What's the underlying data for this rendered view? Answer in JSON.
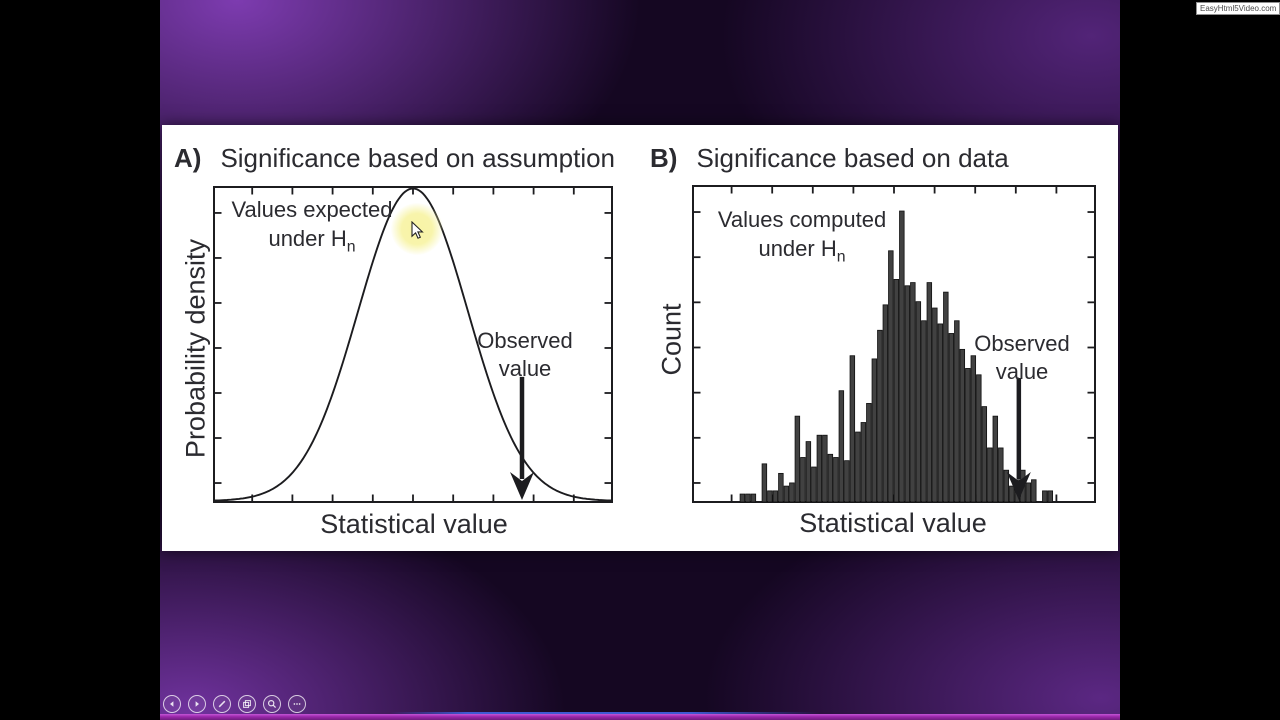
{
  "player": {
    "watermark": "EasyHtml5Video.com",
    "controls": [
      {
        "name": "previous-slide-button",
        "icon": "arrow-left-icon"
      },
      {
        "name": "next-slide-button",
        "icon": "arrow-right-icon"
      },
      {
        "name": "pen-tool-button",
        "icon": "pen-icon"
      },
      {
        "name": "slide-overview-button",
        "icon": "pages-icon"
      },
      {
        "name": "zoom-button",
        "icon": "magnifier-icon"
      },
      {
        "name": "more-options-button",
        "icon": "ellipsis-icon"
      }
    ]
  },
  "slide": {
    "panels": [
      {
        "panel_label": "A)",
        "title": "Significance based on assumption",
        "ylabel": "Probability density",
        "xlabel": "Statistical value",
        "annotation_line1": "Values expected",
        "annotation_line2_prefix": "under H",
        "annotation_line2_sub": "n",
        "observed_line1": "Observed",
        "observed_line2": "value"
      },
      {
        "panel_label": "B)",
        "title": "Significance based on data",
        "ylabel": "Count",
        "xlabel": "Statistical value",
        "annotation_line1": "Values computed",
        "annotation_line2_prefix": "under H",
        "annotation_line2_sub": "n",
        "observed_line1": "Observed",
        "observed_line2": "value"
      }
    ]
  },
  "colors": {
    "ink": "#1c1c1f",
    "text": "#2b2b30",
    "bar_fill": "#414141",
    "bar_stroke": "#101010",
    "highlight_yellow": "#f7f3a0",
    "stage_purple": "#5e2486",
    "bottom_strip": "#9b27ab"
  },
  "chart_data": [
    {
      "id": "A",
      "type": "line",
      "subtype": "gaussian-density-curve",
      "title": "Significance based on assumption",
      "xlabel": "Statistical value",
      "ylabel": "Probability density",
      "x_tick_labels": "none",
      "y_tick_labels": "none",
      "n_x_ticks": 9,
      "n_y_ticks": 7,
      "curve": {
        "distribution": "normal",
        "mean": 0,
        "sd": 1,
        "center_frac": 0.5,
        "sigma_frac": 0.1375,
        "x_range_sd": [
          -3.6,
          3.6
        ]
      },
      "observed_arrow": {
        "x_frac": 0.7725,
        "shaft_top_frac": 0.602,
        "approx_sd_units": 2.0
      }
    },
    {
      "id": "B",
      "type": "bar",
      "subtype": "histogram",
      "title": "Significance based on data",
      "xlabel": "Statistical value",
      "ylabel": "Count",
      "x_tick_labels": "none",
      "y_tick_labels": "none",
      "n_x_ticks": 9,
      "n_y_ticks": 7,
      "bar_start_frac": 0.119,
      "bar_slot_frac": 0.01361,
      "bar_heights_frac_of_axis": [
        0.025,
        0.025,
        0.025,
        0,
        0.12,
        0.035,
        0.035,
        0.09,
        0.05,
        0.06,
        0.27,
        0.14,
        0.19,
        0.11,
        0.21,
        0.21,
        0.15,
        0.14,
        0.35,
        0.13,
        0.46,
        0.22,
        0.25,
        0.31,
        0.45,
        0.54,
        0.62,
        0.79,
        0.7,
        0.915,
        0.68,
        0.69,
        0.63,
        0.57,
        0.69,
        0.61,
        0.56,
        0.66,
        0.53,
        0.57,
        0.48,
        0.42,
        0.46,
        0.4,
        0.3,
        0.17,
        0.27,
        0.17,
        0.1,
        0.05,
        0.07,
        0.1,
        0.06,
        0.07,
        0,
        0.035,
        0.035
      ],
      "observed_arrow": {
        "x_frac": 0.809,
        "shaft_top_frac": 0.607,
        "approx_sd_units": 2.1
      }
    }
  ]
}
